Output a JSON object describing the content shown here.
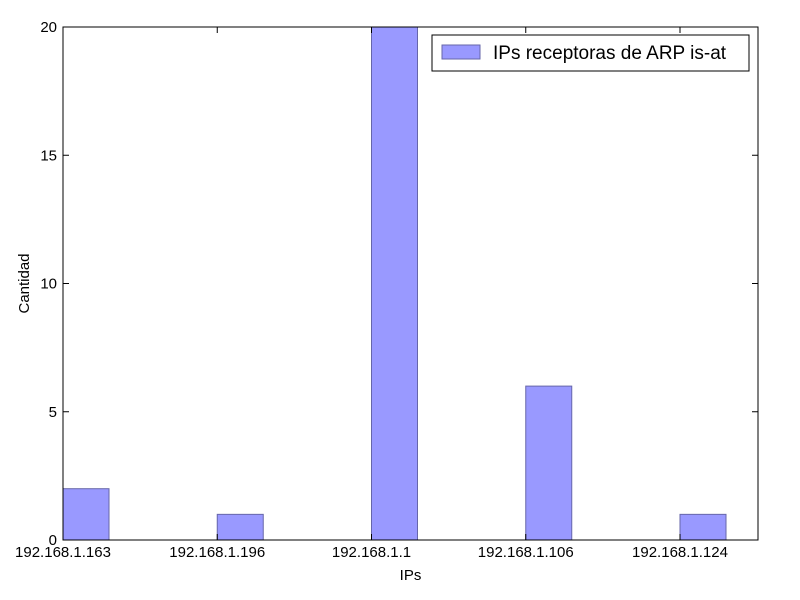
{
  "chart_data": {
    "type": "bar",
    "categories": [
      "192.168.1.163",
      "192.168.1.196",
      "192.168.1.1",
      "192.168.1.106",
      "192.168.1.124"
    ],
    "series": [
      {
        "name": "IPs receptoras de ARP is-at",
        "values": [
          2,
          1,
          20,
          6,
          1
        ],
        "color": "#9999ff",
        "edge_color": "#6666aa"
      }
    ],
    "xlabel": "IPs",
    "ylabel": "Cantidad",
    "ylim": [
      0,
      20
    ],
    "yticks": [
      0,
      5,
      10,
      15,
      20
    ],
    "legend": {
      "placement": "top-right"
    },
    "grid": false
  }
}
